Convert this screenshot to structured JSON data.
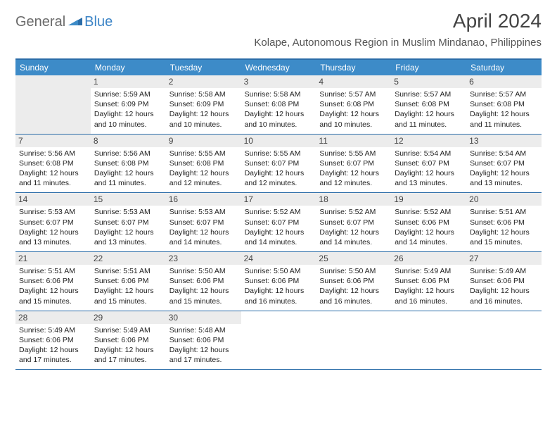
{
  "brand": {
    "part1": "General",
    "part2": "Blue"
  },
  "title": "April 2024",
  "location": "Kolape, Autonomous Region in Muslim Mindanao, Philippines",
  "colors": {
    "header_bg": "#3d8bc8",
    "header_border": "#2a6ca8",
    "daynum_bg": "#ececec",
    "brand_gray": "#6a6a6a",
    "brand_blue": "#3c84c6"
  },
  "day_headers": [
    "Sunday",
    "Monday",
    "Tuesday",
    "Wednesday",
    "Thursday",
    "Friday",
    "Saturday"
  ],
  "leading_blanks": 1,
  "days": [
    {
      "n": "1",
      "sunrise": "5:59 AM",
      "sunset": "6:09 PM",
      "daylight": "12 hours and 10 minutes."
    },
    {
      "n": "2",
      "sunrise": "5:58 AM",
      "sunset": "6:09 PM",
      "daylight": "12 hours and 10 minutes."
    },
    {
      "n": "3",
      "sunrise": "5:58 AM",
      "sunset": "6:08 PM",
      "daylight": "12 hours and 10 minutes."
    },
    {
      "n": "4",
      "sunrise": "5:57 AM",
      "sunset": "6:08 PM",
      "daylight": "12 hours and 10 minutes."
    },
    {
      "n": "5",
      "sunrise": "5:57 AM",
      "sunset": "6:08 PM",
      "daylight": "12 hours and 11 minutes."
    },
    {
      "n": "6",
      "sunrise": "5:57 AM",
      "sunset": "6:08 PM",
      "daylight": "12 hours and 11 minutes."
    },
    {
      "n": "7",
      "sunrise": "5:56 AM",
      "sunset": "6:08 PM",
      "daylight": "12 hours and 11 minutes."
    },
    {
      "n": "8",
      "sunrise": "5:56 AM",
      "sunset": "6:08 PM",
      "daylight": "12 hours and 11 minutes."
    },
    {
      "n": "9",
      "sunrise": "5:55 AM",
      "sunset": "6:08 PM",
      "daylight": "12 hours and 12 minutes."
    },
    {
      "n": "10",
      "sunrise": "5:55 AM",
      "sunset": "6:07 PM",
      "daylight": "12 hours and 12 minutes."
    },
    {
      "n": "11",
      "sunrise": "5:55 AM",
      "sunset": "6:07 PM",
      "daylight": "12 hours and 12 minutes."
    },
    {
      "n": "12",
      "sunrise": "5:54 AM",
      "sunset": "6:07 PM",
      "daylight": "12 hours and 13 minutes."
    },
    {
      "n": "13",
      "sunrise": "5:54 AM",
      "sunset": "6:07 PM",
      "daylight": "12 hours and 13 minutes."
    },
    {
      "n": "14",
      "sunrise": "5:53 AM",
      "sunset": "6:07 PM",
      "daylight": "12 hours and 13 minutes."
    },
    {
      "n": "15",
      "sunrise": "5:53 AM",
      "sunset": "6:07 PM",
      "daylight": "12 hours and 13 minutes."
    },
    {
      "n": "16",
      "sunrise": "5:53 AM",
      "sunset": "6:07 PM",
      "daylight": "12 hours and 14 minutes."
    },
    {
      "n": "17",
      "sunrise": "5:52 AM",
      "sunset": "6:07 PM",
      "daylight": "12 hours and 14 minutes."
    },
    {
      "n": "18",
      "sunrise": "5:52 AM",
      "sunset": "6:07 PM",
      "daylight": "12 hours and 14 minutes."
    },
    {
      "n": "19",
      "sunrise": "5:52 AM",
      "sunset": "6:06 PM",
      "daylight": "12 hours and 14 minutes."
    },
    {
      "n": "20",
      "sunrise": "5:51 AM",
      "sunset": "6:06 PM",
      "daylight": "12 hours and 15 minutes."
    },
    {
      "n": "21",
      "sunrise": "5:51 AM",
      "sunset": "6:06 PM",
      "daylight": "12 hours and 15 minutes."
    },
    {
      "n": "22",
      "sunrise": "5:51 AM",
      "sunset": "6:06 PM",
      "daylight": "12 hours and 15 minutes."
    },
    {
      "n": "23",
      "sunrise": "5:50 AM",
      "sunset": "6:06 PM",
      "daylight": "12 hours and 15 minutes."
    },
    {
      "n": "24",
      "sunrise": "5:50 AM",
      "sunset": "6:06 PM",
      "daylight": "12 hours and 16 minutes."
    },
    {
      "n": "25",
      "sunrise": "5:50 AM",
      "sunset": "6:06 PM",
      "daylight": "12 hours and 16 minutes."
    },
    {
      "n": "26",
      "sunrise": "5:49 AM",
      "sunset": "6:06 PM",
      "daylight": "12 hours and 16 minutes."
    },
    {
      "n": "27",
      "sunrise": "5:49 AM",
      "sunset": "6:06 PM",
      "daylight": "12 hours and 16 minutes."
    },
    {
      "n": "28",
      "sunrise": "5:49 AM",
      "sunset": "6:06 PM",
      "daylight": "12 hours and 17 minutes."
    },
    {
      "n": "29",
      "sunrise": "5:49 AM",
      "sunset": "6:06 PM",
      "daylight": "12 hours and 17 minutes."
    },
    {
      "n": "30",
      "sunrise": "5:48 AM",
      "sunset": "6:06 PM",
      "daylight": "12 hours and 17 minutes."
    }
  ],
  "labels": {
    "sunrise": "Sunrise:",
    "sunset": "Sunset:",
    "daylight": "Daylight:"
  }
}
